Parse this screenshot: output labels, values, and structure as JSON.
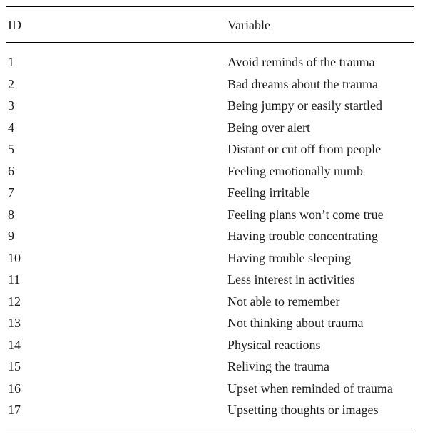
{
  "table": {
    "headers": {
      "id": "ID",
      "variable": "Variable"
    },
    "rows": [
      {
        "id": "1",
        "variable": "Avoid reminds of the trauma"
      },
      {
        "id": "2",
        "variable": "Bad dreams about the trauma"
      },
      {
        "id": "3",
        "variable": "Being jumpy or easily startled"
      },
      {
        "id": "4",
        "variable": "Being over alert"
      },
      {
        "id": "5",
        "variable": "Distant or cut off from people"
      },
      {
        "id": "6",
        "variable": "Feeling emotionally numb"
      },
      {
        "id": "7",
        "variable": "Feeling irritable"
      },
      {
        "id": "8",
        "variable": "Feeling plans won’t come true"
      },
      {
        "id": "9",
        "variable": "Having trouble concentrating"
      },
      {
        "id": "10",
        "variable": "Having trouble sleeping"
      },
      {
        "id": "11",
        "variable": "Less interest in activities"
      },
      {
        "id": "12",
        "variable": "Not able to remember"
      },
      {
        "id": "13",
        "variable": "Not thinking about trauma"
      },
      {
        "id": "14",
        "variable": "Physical reactions"
      },
      {
        "id": "15",
        "variable": "Reliving the trauma"
      },
      {
        "id": "16",
        "variable": "Upset when reminded of trauma"
      },
      {
        "id": "17",
        "variable": "Upsetting thoughts or images"
      }
    ]
  }
}
